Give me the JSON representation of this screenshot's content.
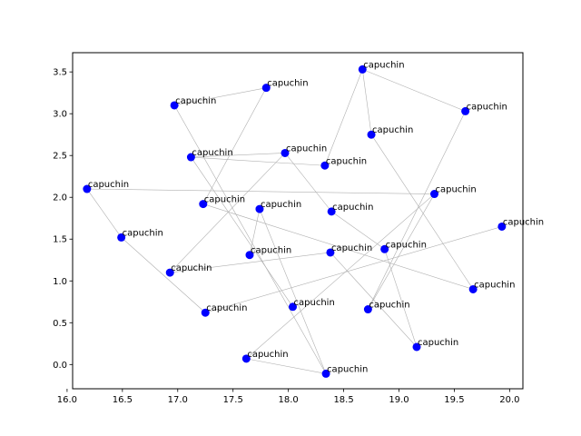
{
  "chart_data": {
    "type": "scatter",
    "title": "",
    "xlabel": "",
    "ylabel": "",
    "xlim": [
      16.05,
      20.12
    ],
    "ylim": [
      -0.29,
      3.73
    ],
    "xticks": [
      "16.0",
      "16.5",
      "17.0",
      "17.5",
      "18.0",
      "18.5",
      "19.0",
      "19.5",
      "20.0"
    ],
    "yticks": [
      "0.0",
      "0.5",
      "1.0",
      "1.5",
      "2.0",
      "2.5",
      "3.0",
      "3.5"
    ],
    "grid": false,
    "legend": "none",
    "point_color": "#0000ff",
    "edge_color": "#b0b0b0",
    "points": [
      {
        "x": 18.67,
        "y": 3.53,
        "label": "capuchin"
      },
      {
        "x": 17.8,
        "y": 3.31,
        "label": "capuchin"
      },
      {
        "x": 16.97,
        "y": 3.1,
        "label": "capuchin"
      },
      {
        "x": 19.6,
        "y": 3.03,
        "label": "capuchin"
      },
      {
        "x": 18.75,
        "y": 2.75,
        "label": "capuchin"
      },
      {
        "x": 17.97,
        "y": 2.53,
        "label": "capuchin"
      },
      {
        "x": 17.12,
        "y": 2.48,
        "label": "capuchin"
      },
      {
        "x": 18.33,
        "y": 2.38,
        "label": "capuchin"
      },
      {
        "x": 16.18,
        "y": 2.1,
        "label": "capuchin"
      },
      {
        "x": 19.32,
        "y": 2.04,
        "label": "capuchin"
      },
      {
        "x": 17.23,
        "y": 1.92,
        "label": "capuchin"
      },
      {
        "x": 17.74,
        "y": 1.86,
        "label": "capuchin"
      },
      {
        "x": 18.39,
        "y": 1.83,
        "label": "capuchin"
      },
      {
        "x": 19.93,
        "y": 1.65,
        "label": "capuchin"
      },
      {
        "x": 16.49,
        "y": 1.52,
        "label": "capuchin"
      },
      {
        "x": 18.87,
        "y": 1.38,
        "label": "capuchin"
      },
      {
        "x": 18.38,
        "y": 1.34,
        "label": "capuchin"
      },
      {
        "x": 17.65,
        "y": 1.31,
        "label": "capuchin"
      },
      {
        "x": 16.93,
        "y": 1.1,
        "label": "capuchin"
      },
      {
        "x": 19.67,
        "y": 0.9,
        "label": "capuchin"
      },
      {
        "x": 18.04,
        "y": 0.69,
        "label": "capuchin"
      },
      {
        "x": 18.72,
        "y": 0.66,
        "label": "capuchin"
      },
      {
        "x": 17.25,
        "y": 0.62,
        "label": "capuchin"
      },
      {
        "x": 19.16,
        "y": 0.21,
        "label": "capuchin"
      },
      {
        "x": 17.62,
        "y": 0.07,
        "label": "capuchin"
      },
      {
        "x": 18.34,
        "y": -0.11,
        "label": "capuchin"
      }
    ],
    "edges": [
      [
        0,
        3
      ],
      [
        0,
        7
      ],
      [
        0,
        4
      ],
      [
        1,
        2
      ],
      [
        1,
        10
      ],
      [
        3,
        21
      ],
      [
        4,
        19
      ],
      [
        5,
        6
      ],
      [
        5,
        18
      ],
      [
        5,
        12
      ],
      [
        6,
        7
      ],
      [
        6,
        20
      ],
      [
        8,
        9
      ],
      [
        8,
        14
      ],
      [
        9,
        24
      ],
      [
        9,
        21
      ],
      [
        10,
        19
      ],
      [
        11,
        17
      ],
      [
        11,
        25
      ],
      [
        12,
        15
      ],
      [
        13,
        22
      ],
      [
        14,
        22
      ],
      [
        15,
        23
      ],
      [
        16,
        18
      ],
      [
        16,
        23
      ],
      [
        2,
        25
      ],
      [
        24,
        25
      ]
    ]
  }
}
